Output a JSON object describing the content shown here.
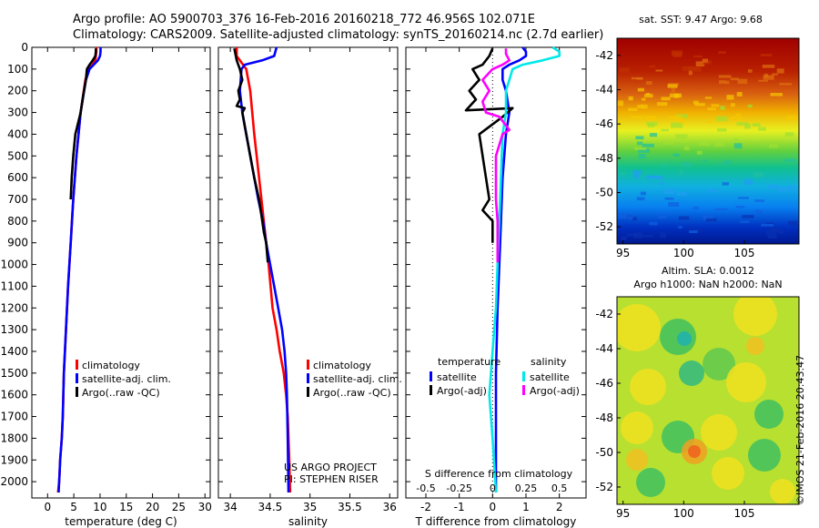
{
  "header": {
    "line1": "Argo profile: AO 5900703_376 16-Feb-2016 20160218_772 46.956S 102.071E",
    "line2": "Climatology: CARS2009. Satellite-adjusted climatology: synTS_20160214.nc (2.7d earlier)"
  },
  "stamp": "©IMOS 21-Feb-2016 20:43:47",
  "credits": [
    "US ARGO PROJECT",
    "PI: STEPHEN RISER"
  ],
  "colors": {
    "climatology": "#ff0000",
    "satellite": "#0000ff",
    "argo": "#000000",
    "sal_satellite": "#00e5e5",
    "sal_argo": "#ff00ff"
  },
  "chart_data": [
    {
      "type": "line",
      "panel": "temperature",
      "xlabel": "temperature (deg C)",
      "xlim": [
        -3,
        31
      ],
      "xticks": [
        0,
        5,
        10,
        15,
        20,
        25,
        30
      ],
      "ylim": [
        2075,
        0
      ],
      "yticks": [
        0,
        100,
        200,
        300,
        400,
        500,
        600,
        700,
        800,
        900,
        1000,
        1100,
        1200,
        1300,
        1400,
        1500,
        1600,
        1700,
        1800,
        1900,
        2000
      ],
      "legend": [
        "climatology",
        "satellite-adj. clim.",
        "Argo(..raw -QC)"
      ],
      "series": [
        {
          "name": "climatology",
          "color": "red",
          "x": [
            9.3,
            9.3,
            9.2,
            9.1,
            8.6,
            7.8,
            7.2,
            6.3,
            5.5,
            4.9,
            4.4,
            3.9,
            3.5,
            3.1,
            2.9,
            2.7,
            2.4,
            2.3,
            2.2,
            2.0
          ],
          "y": [
            0,
            20,
            40,
            60,
            80,
            100,
            150,
            300,
            500,
            700,
            900,
            1100,
            1300,
            1500,
            1700,
            1800,
            1900,
            1950,
            2000,
            2050
          ]
        },
        {
          "name": "satellite-adj. clim.",
          "color": "blue",
          "x": [
            10.1,
            10.1,
            10.0,
            9.6,
            8.8,
            8.0,
            7.3,
            6.3,
            5.5,
            4.9,
            4.4,
            3.9,
            3.5,
            3.1,
            2.9,
            2.7,
            2.4,
            2.3,
            2.2,
            2.1
          ],
          "y": [
            0,
            20,
            40,
            60,
            80,
            100,
            150,
            300,
            500,
            700,
            900,
            1100,
            1300,
            1500,
            1700,
            1800,
            1900,
            1950,
            2000,
            2050
          ]
        },
        {
          "name": "Argo(..raw -QC)",
          "color": "black",
          "x": [
            9.2,
            9.2,
            9.1,
            8.6,
            8.0,
            7.5,
            7.3,
            6.8,
            6.3,
            6.0,
            5.3,
            4.9,
            4.6,
            4.4
          ],
          "y": [
            5,
            20,
            40,
            60,
            80,
            100,
            150,
            220,
            300,
            330,
            400,
            500,
            600,
            700
          ]
        }
      ]
    },
    {
      "type": "line",
      "panel": "salinity",
      "xlabel": "salinity",
      "xlim": [
        33.85,
        36.1
      ],
      "xticks": [
        34,
        34.5,
        35,
        35.5,
        36
      ],
      "xtick_labels": [
        "34",
        "34.5",
        "35",
        "35.5",
        "36"
      ],
      "ylim": [
        2075,
        0
      ],
      "legend": [
        "climatology",
        "satellite-adj. clim.",
        "Argo(..raw -QC)"
      ],
      "series": [
        {
          "name": "climatology",
          "color": "red",
          "x": [
            34.08,
            34.08,
            34.12,
            34.16,
            34.2,
            34.25,
            34.3,
            34.36,
            34.42,
            34.48,
            34.53,
            34.58,
            34.62,
            34.67,
            34.7,
            34.72,
            34.73,
            34.74,
            34.75
          ],
          "y": [
            0,
            40,
            60,
            80,
            100,
            200,
            400,
            600,
            800,
            1000,
            1200,
            1300,
            1400,
            1500,
            1600,
            1700,
            1800,
            1900,
            2050
          ]
        },
        {
          "name": "satellite-adj. clim.",
          "color": "blue",
          "x": [
            34.58,
            34.55,
            34.4,
            34.18,
            34.14,
            34.12,
            34.15,
            34.2,
            34.3,
            34.35,
            34.41,
            34.45,
            34.5,
            34.55,
            34.6,
            34.65,
            34.68,
            34.7,
            34.71,
            34.72,
            34.73
          ],
          "y": [
            0,
            40,
            60,
            80,
            100,
            200,
            300,
            400,
            600,
            700,
            800,
            900,
            1000,
            1100,
            1200,
            1300,
            1400,
            1500,
            1600,
            1800,
            2050
          ]
        },
        {
          "name": "Argo(..raw -QC)",
          "color": "black",
          "x": [
            34.05,
            34.08,
            34.12,
            34.15,
            34.1,
            34.12,
            34.08,
            34.18,
            34.15,
            34.2,
            34.3,
            34.36,
            34.4,
            34.42,
            34.45,
            34.47
          ],
          "y": [
            5,
            60,
            100,
            150,
            200,
            240,
            270,
            280,
            300,
            400,
            600,
            700,
            800,
            850,
            900,
            990
          ]
        }
      ]
    },
    {
      "type": "line",
      "panel": "differences",
      "xlabel": "T difference from climatology",
      "xlim": [
        -2.6,
        2.8
      ],
      "xticks": [
        -2,
        -1,
        0,
        1,
        2
      ],
      "top_axis_label": "S difference from climatology",
      "top_ticks": [
        -0.5,
        -0.25,
        0,
        0.25,
        0.5
      ],
      "top_tick_labels": [
        "-0.5",
        "-0.25",
        "0",
        "0.25",
        "0.5"
      ],
      "ylim": [
        2075,
        0
      ],
      "legend_headers": [
        "temperature",
        "salinity"
      ],
      "legend": [
        "satellite",
        "Argo(-adj)",
        "satellite",
        "Argo(-adj)"
      ],
      "series": [
        {
          "name": "satellite",
          "quantity": "temperature",
          "color": "blue",
          "x": [
            0.9,
            1.0,
            1.0,
            0.8,
            0.5,
            0.3,
            0.3,
            0.4,
            0.5,
            0.4,
            0.3,
            0.25,
            0.2,
            0.15,
            0.1,
            0.1,
            0.1,
            0.1
          ],
          "y": [
            0,
            20,
            40,
            60,
            80,
            100,
            150,
            200,
            300,
            400,
            600,
            800,
            1000,
            1200,
            1500,
            1800,
            1900,
            2050
          ]
        },
        {
          "name": "Argo(-adj)",
          "quantity": "temperature",
          "color": "black",
          "x": [
            0.0,
            -0.1,
            -0.3,
            -0.6,
            -0.4,
            -0.7,
            -0.5,
            -0.8,
            0.6,
            0.3,
            -0.4,
            -0.2,
            -0.1,
            -0.3,
            0.0,
            0.0,
            0.0
          ],
          "y": [
            5,
            40,
            80,
            100,
            150,
            200,
            240,
            290,
            280,
            320,
            400,
            600,
            700,
            750,
            800,
            850,
            900
          ]
        },
        {
          "name": "satellite",
          "quantity": "salinity",
          "color": "cyan",
          "x": [
            1.8,
            2.0,
            2.0,
            1.5,
            0.9,
            0.6,
            0.5,
            0.4,
            0.4,
            0.3,
            0.25,
            0.2,
            0.15,
            0.1,
            0.0,
            -0.1,
            0.0,
            0.1
          ],
          "y": [
            0,
            20,
            40,
            60,
            80,
            100,
            150,
            200,
            300,
            400,
            600,
            800,
            1000,
            1200,
            1400,
            1600,
            1800,
            2050
          ]
        },
        {
          "name": "Argo(-adj)",
          "quantity": "salinity",
          "color": "magenta",
          "x": [
            0.4,
            0.4,
            0.5,
            0.3,
            0.0,
            -0.3,
            -0.1,
            -0.3,
            -0.2,
            0.2,
            0.5,
            0.3,
            0.1,
            0.1,
            0.1,
            0.15,
            0.15,
            0.15
          ],
          "y": [
            5,
            30,
            60,
            80,
            100,
            150,
            200,
            250,
            300,
            320,
            380,
            400,
            500,
            600,
            700,
            800,
            900,
            990
          ]
        }
      ]
    },
    {
      "type": "heatmap",
      "panel": "sst_map",
      "title": "sat. SST: 9.47 Argo: 9.68",
      "xticks": [
        95,
        100,
        105
      ],
      "yticks": [
        -42,
        -44,
        -46,
        -48,
        -50,
        -52
      ],
      "xlim": [
        94.5,
        109.5
      ],
      "ylim": [
        -53,
        -41
      ]
    },
    {
      "type": "heatmap",
      "panel": "sla_map",
      "title_lines": [
        "Altim. SLA: 0.0012",
        "Argo h1000: NaN h2000: NaN"
      ],
      "xticks": [
        95,
        100,
        105
      ],
      "yticks": [
        -42,
        -44,
        -46,
        -48,
        -50,
        -52
      ],
      "xlim": [
        94.5,
        109.5
      ],
      "ylim": [
        -53,
        -41
      ]
    }
  ]
}
